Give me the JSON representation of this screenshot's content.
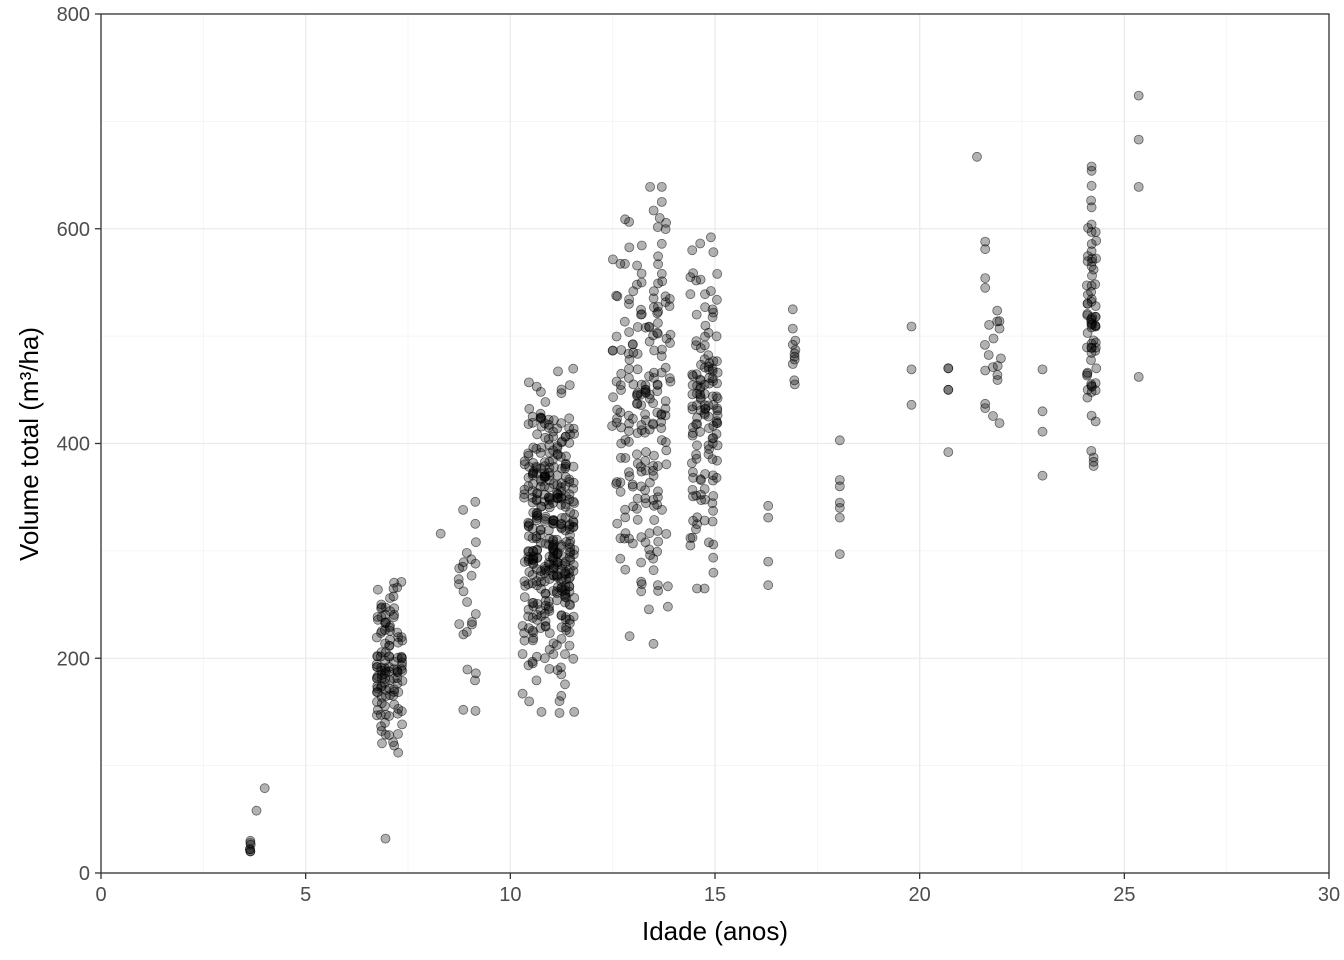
{
  "chart_data": {
    "type": "scatter",
    "title": "",
    "xlabel": "Idade (anos)",
    "ylabel": "Volume total (m³/ha)",
    "xlim": [
      0,
      30
    ],
    "ylim": [
      0,
      800
    ],
    "x_ticks": [
      0,
      5,
      10,
      15,
      20,
      25,
      30
    ],
    "y_ticks": [
      0,
      200,
      400,
      600,
      800
    ],
    "x_tick_labels": [
      "0",
      "5",
      "10",
      "15",
      "20",
      "25",
      "30"
    ],
    "y_tick_labels": [
      "0",
      "200",
      "400",
      "600",
      "800"
    ],
    "grid": true,
    "legend": "none",
    "point_color": "#000000",
    "point_alpha": 0.3,
    "clusters": [
      {
        "x_center": 3.65,
        "x_spread": 0.05,
        "y_min": 20,
        "y_max": 30,
        "n": 4
      },
      {
        "x_center": 7.05,
        "x_spread": 0.35,
        "y_min": 112,
        "y_max": 275,
        "n": 120
      },
      {
        "x_center": 8.95,
        "x_spread": 0.25,
        "y_min": 152,
        "y_max": 363,
        "n": 24
      },
      {
        "x_center": 10.95,
        "x_spread": 0.6,
        "y_min": 150,
        "y_max": 483,
        "n": 380
      },
      {
        "x_center": 13.2,
        "x_spread": 0.7,
        "y_min": 213,
        "y_max": 639,
        "n": 200
      },
      {
        "x_center": 14.75,
        "x_spread": 0.35,
        "y_min": 265,
        "y_max": 592,
        "n": 130
      },
      {
        "x_center": 16.95,
        "x_spread": 0.05,
        "y_min": 455,
        "y_max": 525,
        "n": 6
      },
      {
        "x_center": 21.8,
        "x_spread": 0.25,
        "y_min": 420,
        "y_max": 588,
        "n": 12
      },
      {
        "x_center": 24.2,
        "x_spread": 0.12,
        "y_min": 380,
        "y_max": 658,
        "n": 50
      }
    ],
    "points": [
      {
        "x": 3.65,
        "y": 20
      },
      {
        "x": 3.65,
        "y": 28
      },
      {
        "x": 3.65,
        "y": 30
      },
      {
        "x": 3.8,
        "y": 58
      },
      {
        "x": 4.0,
        "y": 79
      },
      {
        "x": 6.95,
        "y": 32
      },
      {
        "x": 8.3,
        "y": 316
      },
      {
        "x": 9.15,
        "y": 151
      },
      {
        "x": 8.85,
        "y": 152
      },
      {
        "x": 11.2,
        "y": 149
      },
      {
        "x": 11.2,
        "y": 160
      },
      {
        "x": 11.25,
        "y": 218
      },
      {
        "x": 10.3,
        "y": 167
      },
      {
        "x": 10.3,
        "y": 204
      },
      {
        "x": 10.3,
        "y": 230
      },
      {
        "x": 13.5,
        "y": 617
      },
      {
        "x": 13.7,
        "y": 639
      },
      {
        "x": 13.7,
        "y": 625
      },
      {
        "x": 13.65,
        "y": 610
      },
      {
        "x": 13.7,
        "y": 586
      },
      {
        "x": 13.7,
        "y": 558
      },
      {
        "x": 13.85,
        "y": 248
      },
      {
        "x": 13.85,
        "y": 267
      },
      {
        "x": 13.5,
        "y": 282
      },
      {
        "x": 14.9,
        "y": 592
      },
      {
        "x": 14.9,
        "y": 542
      },
      {
        "x": 14.4,
        "y": 555
      },
      {
        "x": 14.4,
        "y": 539
      },
      {
        "x": 14.4,
        "y": 305
      },
      {
        "x": 14.4,
        "y": 312
      },
      {
        "x": 16.3,
        "y": 342
      },
      {
        "x": 16.3,
        "y": 331
      },
      {
        "x": 16.3,
        "y": 290
      },
      {
        "x": 16.3,
        "y": 268
      },
      {
        "x": 16.9,
        "y": 525
      },
      {
        "x": 16.9,
        "y": 507
      },
      {
        "x": 16.9,
        "y": 492
      },
      {
        "x": 16.9,
        "y": 474
      },
      {
        "x": 16.95,
        "y": 455
      },
      {
        "x": 18.05,
        "y": 403
      },
      {
        "x": 18.05,
        "y": 366
      },
      {
        "x": 18.05,
        "y": 360
      },
      {
        "x": 18.05,
        "y": 345
      },
      {
        "x": 18.05,
        "y": 340
      },
      {
        "x": 18.05,
        "y": 331
      },
      {
        "x": 18.05,
        "y": 297
      },
      {
        "x": 19.8,
        "y": 509
      },
      {
        "x": 19.8,
        "y": 469
      },
      {
        "x": 19.8,
        "y": 436
      },
      {
        "x": 20.7,
        "y": 470
      },
      {
        "x": 20.7,
        "y": 470
      },
      {
        "x": 20.7,
        "y": 450
      },
      {
        "x": 20.7,
        "y": 450
      },
      {
        "x": 20.7,
        "y": 392
      },
      {
        "x": 21.4,
        "y": 667
      },
      {
        "x": 21.6,
        "y": 588
      },
      {
        "x": 21.6,
        "y": 581
      },
      {
        "x": 21.6,
        "y": 554
      },
      {
        "x": 21.6,
        "y": 545
      },
      {
        "x": 21.95,
        "y": 514
      },
      {
        "x": 21.95,
        "y": 507
      },
      {
        "x": 21.6,
        "y": 468
      },
      {
        "x": 21.6,
        "y": 437
      },
      {
        "x": 21.6,
        "y": 433
      },
      {
        "x": 21.95,
        "y": 419
      },
      {
        "x": 23.0,
        "y": 469
      },
      {
        "x": 23.0,
        "y": 430
      },
      {
        "x": 23.0,
        "y": 411
      },
      {
        "x": 23.0,
        "y": 370
      },
      {
        "x": 24.2,
        "y": 658
      },
      {
        "x": 24.2,
        "y": 654
      },
      {
        "x": 24.2,
        "y": 640
      },
      {
        "x": 24.2,
        "y": 620
      },
      {
        "x": 24.2,
        "y": 604
      },
      {
        "x": 24.2,
        "y": 597
      },
      {
        "x": 24.3,
        "y": 597
      },
      {
        "x": 24.2,
        "y": 579
      },
      {
        "x": 24.2,
        "y": 565
      },
      {
        "x": 24.25,
        "y": 562
      },
      {
        "x": 24.2,
        "y": 547
      },
      {
        "x": 24.2,
        "y": 532
      },
      {
        "x": 24.3,
        "y": 528
      },
      {
        "x": 24.2,
        "y": 516
      },
      {
        "x": 24.3,
        "y": 518
      },
      {
        "x": 24.2,
        "y": 508
      },
      {
        "x": 24.25,
        "y": 496
      },
      {
        "x": 24.2,
        "y": 493
      },
      {
        "x": 24.2,
        "y": 448
      },
      {
        "x": 24.2,
        "y": 426
      },
      {
        "x": 24.25,
        "y": 387
      },
      {
        "x": 24.25,
        "y": 383
      },
      {
        "x": 24.25,
        "y": 379
      },
      {
        "x": 25.35,
        "y": 724
      },
      {
        "x": 25.35,
        "y": 683
      },
      {
        "x": 25.35,
        "y": 639
      },
      {
        "x": 25.35,
        "y": 462
      }
    ]
  }
}
